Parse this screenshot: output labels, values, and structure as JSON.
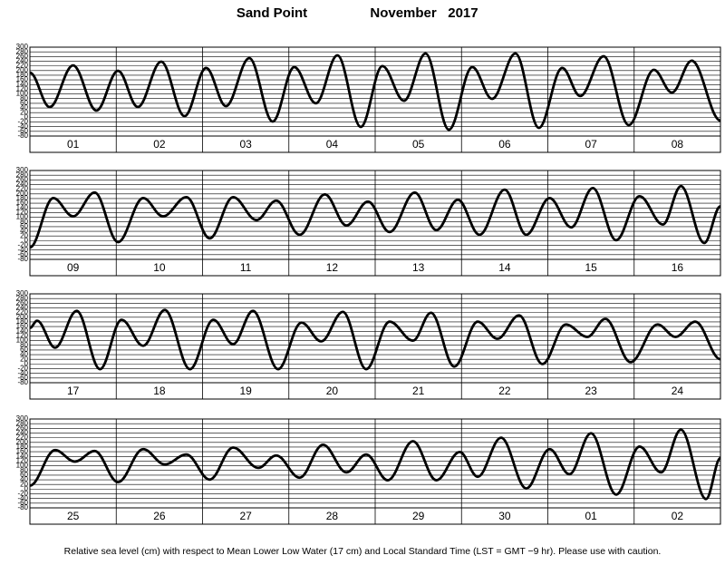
{
  "title": "Sand Point",
  "subtitle": "November   2017",
  "note": "Relative sea level (cm) with respect to Mean Lower Low Water (17 cm) and Local Standard Time (LST = GMT −9 hr). Please use with caution.",
  "chart_data": [
    {
      "type": "line",
      "categories": [
        "01",
        "02",
        "03",
        "04",
        "05",
        "06",
        "07",
        "08"
      ],
      "xlim": [
        0,
        192
      ],
      "ylim": [
        -80,
        300
      ],
      "yticks": [
        300,
        280,
        260,
        240,
        220,
        200,
        180,
        160,
        140,
        120,
        100,
        80,
        60,
        40,
        20,
        0,
        -20,
        -40,
        -60,
        -80
      ],
      "grid": true,
      "series": [
        {
          "color": "#000000",
          "x": [
            0,
            5.5,
            12,
            18.5,
            24.5,
            30,
            36.5,
            43,
            49,
            54.5,
            61,
            67.5,
            73.5,
            79.5,
            85.5,
            92,
            98,
            104,
            110,
            116.5,
            123,
            128.5,
            135,
            141.5,
            148,
            153,
            159.5,
            166.5,
            173.5,
            178.5,
            184,
            192
          ],
          "values": [
            191,
            44,
            222,
            29,
            199,
            44,
            238,
            5,
            211,
            48,
            253,
            -18,
            215,
            60,
            265,
            -41,
            219,
            71,
            273,
            -53,
            215,
            79,
            273,
            -45,
            211,
            91,
            261,
            -33,
            203,
            106,
            242,
            -14
          ]
        }
      ]
    },
    {
      "type": "line",
      "categories": [
        "09",
        "10",
        "11",
        "12",
        "13",
        "14",
        "15",
        "16"
      ],
      "xlim": [
        0,
        192
      ],
      "ylim": [
        -80,
        300
      ],
      "yticks": [
        300,
        280,
        260,
        240,
        220,
        200,
        180,
        160,
        140,
        120,
        100,
        80,
        60,
        40,
        20,
        0,
        -20,
        -40,
        -60,
        -80
      ],
      "grid": true,
      "series": [
        {
          "color": "#000000",
          "x": [
            0,
            6.5,
            12,
            18,
            24.5,
            31.5,
            37,
            43.5,
            50,
            56.5,
            63,
            68.5,
            75,
            82,
            88,
            94,
            100,
            107,
            113,
            119,
            125,
            132,
            138,
            144.5,
            150.5,
            156.5,
            163,
            169.5,
            176,
            181,
            187.5,
            192
          ],
          "values": [
            -29,
            182,
            104,
            206,
            -6,
            182,
            104,
            186,
            10,
            186,
            88,
            171,
            25,
            198,
            65,
            167,
            37,
            206,
            45,
            175,
            25,
            218,
            25,
            182,
            57,
            225,
            2,
            190,
            69,
            233,
            -10,
            147
          ]
        }
      ]
    },
    {
      "type": "line",
      "categories": [
        "17",
        "18",
        "19",
        "20",
        "21",
        "22",
        "23",
        "24"
      ],
      "xlim": [
        0,
        192
      ],
      "ylim": [
        -80,
        300
      ],
      "yticks": [
        300,
        280,
        260,
        240,
        220,
        200,
        180,
        160,
        140,
        120,
        100,
        80,
        60,
        40,
        20,
        0,
        -20,
        -40,
        -60,
        -80
      ],
      "grid": true,
      "series": [
        {
          "color": "#000000",
          "x": [
            0,
            2,
            7,
            13,
            19.5,
            25.5,
            31.5,
            37.5,
            44.5,
            51,
            56.5,
            62,
            69,
            75.5,
            81,
            87,
            93.5,
            100,
            106.5,
            111.5,
            118,
            124.5,
            130,
            136,
            142.5,
            149,
            155,
            160,
            167,
            174.5,
            179.5,
            185,
            192
          ],
          "values": [
            154,
            185,
            70,
            227,
            -22,
            189,
            78,
            231,
            -22,
            189,
            85,
            227,
            -22,
            177,
            97,
            223,
            -22,
            181,
            100,
            219,
            -11,
            181,
            108,
            208,
            0,
            169,
            116,
            193,
            8,
            169,
            116,
            181,
            20
          ]
        }
      ]
    },
    {
      "type": "line",
      "categories": [
        "25",
        "26",
        "27",
        "28",
        "29",
        "30",
        "01",
        "02"
      ],
      "xlim": [
        0,
        192
      ],
      "ylim": [
        -80,
        300
      ],
      "yticks": [
        300,
        280,
        260,
        240,
        220,
        200,
        180,
        160,
        140,
        120,
        100,
        80,
        60,
        40,
        20,
        0,
        -20,
        -40,
        -60,
        -80
      ],
      "grid": true,
      "series": [
        {
          "color": "#000000",
          "x": [
            0,
            7,
            12.5,
            18,
            24.5,
            31.5,
            37.5,
            43.5,
            50,
            56.5,
            63.5,
            68.5,
            75,
            81.5,
            88,
            93.5,
            99.5,
            106.5,
            113,
            119.5,
            124.5,
            131,
            138,
            144.5,
            150,
            156,
            163,
            169.5,
            175.5,
            181,
            188,
            192
          ],
          "values": [
            15,
            167,
            118,
            163,
            30,
            171,
            106,
            148,
            41,
            178,
            91,
            144,
            49,
            190,
            72,
            148,
            38,
            205,
            38,
            159,
            53,
            220,
            3,
            171,
            64,
            239,
            -23,
            182,
            72,
            254,
            -42,
            133
          ]
        }
      ]
    }
  ]
}
